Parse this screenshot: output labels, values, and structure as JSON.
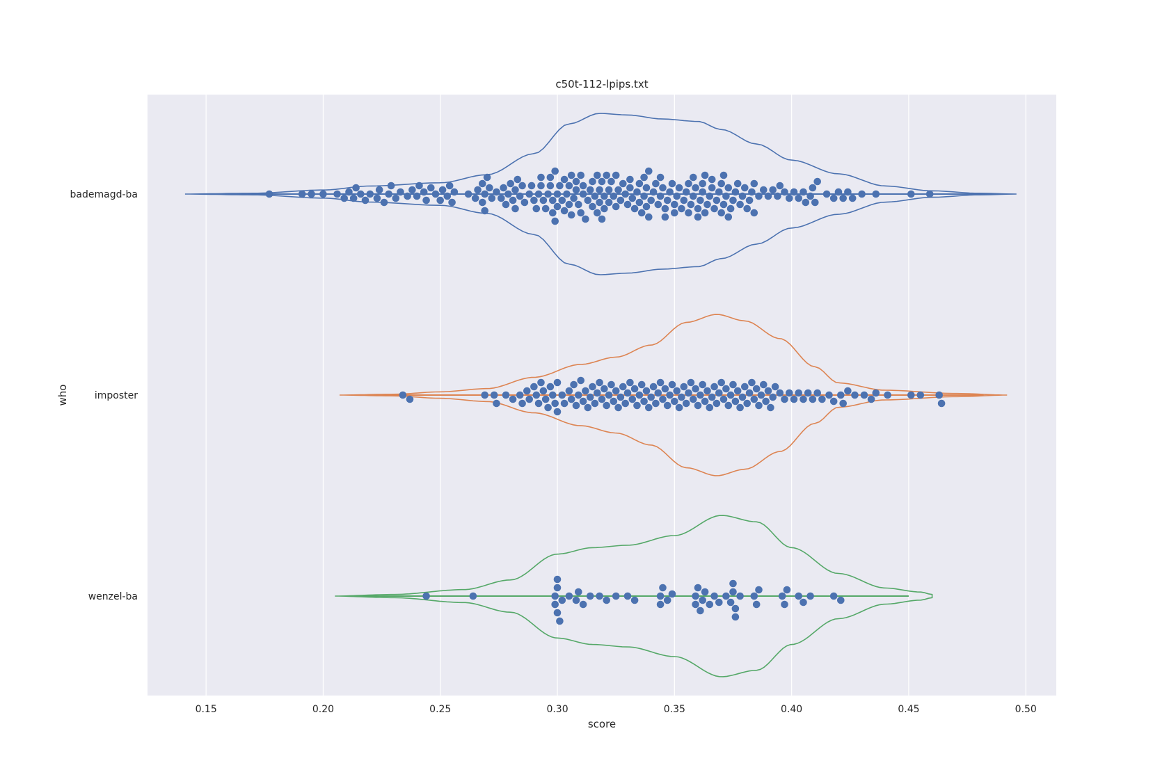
{
  "chart_data": {
    "type": "violin",
    "title": "c50t-112-lpips.txt",
    "xlabel": "score",
    "ylabel": "who",
    "xlim": [
      0.125,
      0.513
    ],
    "xticks": [
      0.15,
      0.2,
      0.25,
      0.3,
      0.35,
      0.4,
      0.45,
      0.5
    ],
    "xtick_labels": [
      "0.15",
      "0.20",
      "0.25",
      "0.30",
      "0.35",
      "0.40",
      "0.45",
      "0.50"
    ],
    "grid": true,
    "orientation": "horizontal",
    "point_color": "#4c72b0",
    "categories": [
      "bademagd-ba",
      "imposter",
      "wenzel-ba"
    ],
    "series": [
      {
        "color": "#4c72b0",
        "violin_range": [
          0.141,
          0.496
        ],
        "violin_density": [
          [
            0.141,
            0
          ],
          [
            0.17,
            0.01
          ],
          [
            0.2,
            0.05
          ],
          [
            0.22,
            0.1
          ],
          [
            0.25,
            0.14
          ],
          [
            0.27,
            0.24
          ],
          [
            0.29,
            0.5
          ],
          [
            0.305,
            0.87
          ],
          [
            0.318,
            1.0
          ],
          [
            0.33,
            0.98
          ],
          [
            0.345,
            0.93
          ],
          [
            0.36,
            0.9
          ],
          [
            0.37,
            0.8
          ],
          [
            0.385,
            0.62
          ],
          [
            0.4,
            0.42
          ],
          [
            0.42,
            0.25
          ],
          [
            0.44,
            0.1
          ],
          [
            0.46,
            0.04
          ],
          [
            0.48,
            0.01
          ],
          [
            0.496,
            0
          ]
        ],
        "points": [
          0.177,
          0.191,
          0.195,
          0.2,
          0.206,
          0.209,
          0.211,
          0.213,
          0.214,
          0.216,
          0.218,
          0.22,
          0.223,
          0.224,
          0.226,
          0.228,
          0.229,
          0.231,
          0.233,
          0.236,
          0.238,
          0.24,
          0.241,
          0.243,
          0.244,
          0.246,
          0.248,
          0.25,
          0.251,
          0.253,
          0.254,
          0.255,
          0.256,
          0.262,
          0.265,
          0.266,
          0.268,
          0.268,
          0.269,
          0.269,
          0.27,
          0.271,
          0.272,
          0.274,
          0.276,
          0.277,
          0.278,
          0.279,
          0.28,
          0.281,
          0.282,
          0.282,
          0.283,
          0.284,
          0.285,
          0.286,
          0.288,
          0.289,
          0.29,
          0.291,
          0.292,
          0.293,
          0.293,
          0.294,
          0.295,
          0.296,
          0.297,
          0.297,
          0.298,
          0.298,
          0.299,
          0.299,
          0.3,
          0.3,
          0.301,
          0.302,
          0.303,
          0.303,
          0.304,
          0.305,
          0.305,
          0.306,
          0.306,
          0.307,
          0.308,
          0.308,
          0.309,
          0.31,
          0.31,
          0.311,
          0.311,
          0.312,
          0.313,
          0.314,
          0.315,
          0.315,
          0.316,
          0.317,
          0.317,
          0.318,
          0.318,
          0.319,
          0.319,
          0.32,
          0.32,
          0.321,
          0.322,
          0.322,
          0.323,
          0.324,
          0.325,
          0.325,
          0.326,
          0.327,
          0.328,
          0.329,
          0.33,
          0.331,
          0.331,
          0.332,
          0.333,
          0.334,
          0.335,
          0.335,
          0.336,
          0.337,
          0.337,
          0.338,
          0.338,
          0.339,
          0.339,
          0.34,
          0.341,
          0.342,
          0.343,
          0.344,
          0.344,
          0.345,
          0.346,
          0.346,
          0.347,
          0.348,
          0.349,
          0.35,
          0.35,
          0.351,
          0.352,
          0.353,
          0.354,
          0.355,
          0.356,
          0.356,
          0.357,
          0.358,
          0.358,
          0.359,
          0.36,
          0.36,
          0.361,
          0.362,
          0.362,
          0.363,
          0.363,
          0.364,
          0.365,
          0.366,
          0.366,
          0.367,
          0.368,
          0.369,
          0.37,
          0.37,
          0.371,
          0.371,
          0.372,
          0.373,
          0.373,
          0.374,
          0.375,
          0.376,
          0.377,
          0.378,
          0.379,
          0.38,
          0.381,
          0.382,
          0.383,
          0.384,
          0.384,
          0.386,
          0.388,
          0.39,
          0.392,
          0.394,
          0.395,
          0.397,
          0.399,
          0.401,
          0.403,
          0.405,
          0.406,
          0.408,
          0.409,
          0.41,
          0.411,
          0.415,
          0.418,
          0.42,
          0.422,
          0.424,
          0.426,
          0.43,
          0.436,
          0.451,
          0.459
        ]
      },
      {
        "color": "#dd8452",
        "violin_range": [
          0.207,
          0.492
        ],
        "violin_density": [
          [
            0.207,
            0
          ],
          [
            0.23,
            0.01
          ],
          [
            0.25,
            0.04
          ],
          [
            0.27,
            0.08
          ],
          [
            0.29,
            0.22
          ],
          [
            0.31,
            0.38
          ],
          [
            0.325,
            0.47
          ],
          [
            0.34,
            0.62
          ],
          [
            0.355,
            0.9
          ],
          [
            0.368,
            1.0
          ],
          [
            0.38,
            0.92
          ],
          [
            0.395,
            0.7
          ],
          [
            0.41,
            0.35
          ],
          [
            0.42,
            0.15
          ],
          [
            0.44,
            0.06
          ],
          [
            0.47,
            0.02
          ],
          [
            0.492,
            0
          ]
        ],
        "points": [
          0.234,
          0.237,
          0.269,
          0.273,
          0.274,
          0.278,
          0.281,
          0.284,
          0.285,
          0.287,
          0.288,
          0.29,
          0.291,
          0.292,
          0.293,
          0.294,
          0.295,
          0.296,
          0.297,
          0.298,
          0.299,
          0.3,
          0.3,
          0.302,
          0.303,
          0.305,
          0.306,
          0.307,
          0.308,
          0.309,
          0.31,
          0.311,
          0.312,
          0.313,
          0.314,
          0.315,
          0.316,
          0.317,
          0.318,
          0.319,
          0.32,
          0.321,
          0.322,
          0.323,
          0.324,
          0.325,
          0.326,
          0.327,
          0.328,
          0.329,
          0.33,
          0.331,
          0.332,
          0.333,
          0.334,
          0.335,
          0.336,
          0.337,
          0.338,
          0.339,
          0.34,
          0.341,
          0.342,
          0.343,
          0.344,
          0.345,
          0.346,
          0.347,
          0.348,
          0.349,
          0.35,
          0.351,
          0.352,
          0.353,
          0.354,
          0.355,
          0.356,
          0.357,
          0.358,
          0.359,
          0.36,
          0.361,
          0.362,
          0.363,
          0.364,
          0.365,
          0.366,
          0.367,
          0.368,
          0.369,
          0.37,
          0.371,
          0.372,
          0.373,
          0.374,
          0.375,
          0.376,
          0.377,
          0.378,
          0.379,
          0.38,
          0.381,
          0.382,
          0.383,
          0.384,
          0.385,
          0.386,
          0.387,
          0.388,
          0.389,
          0.39,
          0.391,
          0.392,
          0.393,
          0.395,
          0.397,
          0.399,
          0.401,
          0.403,
          0.405,
          0.407,
          0.409,
          0.411,
          0.413,
          0.416,
          0.418,
          0.421,
          0.422,
          0.424,
          0.427,
          0.431,
          0.434,
          0.436,
          0.441,
          0.451,
          0.455,
          0.463,
          0.464
        ]
      },
      {
        "color": "#55a868",
        "violin_range": [
          0.205,
          0.46
        ],
        "violin_density": [
          [
            0.205,
            0
          ],
          [
            0.23,
            0.02
          ],
          [
            0.26,
            0.08
          ],
          [
            0.28,
            0.2
          ],
          [
            0.3,
            0.52
          ],
          [
            0.315,
            0.6
          ],
          [
            0.33,
            0.63
          ],
          [
            0.35,
            0.75
          ],
          [
            0.37,
            1.0
          ],
          [
            0.385,
            0.92
          ],
          [
            0.4,
            0.6
          ],
          [
            0.42,
            0.28
          ],
          [
            0.44,
            0.1
          ],
          [
            0.455,
            0.05
          ],
          [
            0.46,
            0.02
          ]
        ],
        "points": [
          0.244,
          0.264,
          0.299,
          0.299,
          0.3,
          0.3,
          0.3,
          0.301,
          0.302,
          0.305,
          0.308,
          0.309,
          0.311,
          0.314,
          0.318,
          0.321,
          0.325,
          0.33,
          0.333,
          0.344,
          0.344,
          0.345,
          0.347,
          0.349,
          0.359,
          0.359,
          0.36,
          0.361,
          0.362,
          0.363,
          0.365,
          0.367,
          0.369,
          0.372,
          0.374,
          0.375,
          0.375,
          0.376,
          0.376,
          0.378,
          0.384,
          0.385,
          0.386,
          0.396,
          0.397,
          0.398,
          0.403,
          0.405,
          0.408,
          0.418,
          0.421
        ]
      }
    ]
  }
}
